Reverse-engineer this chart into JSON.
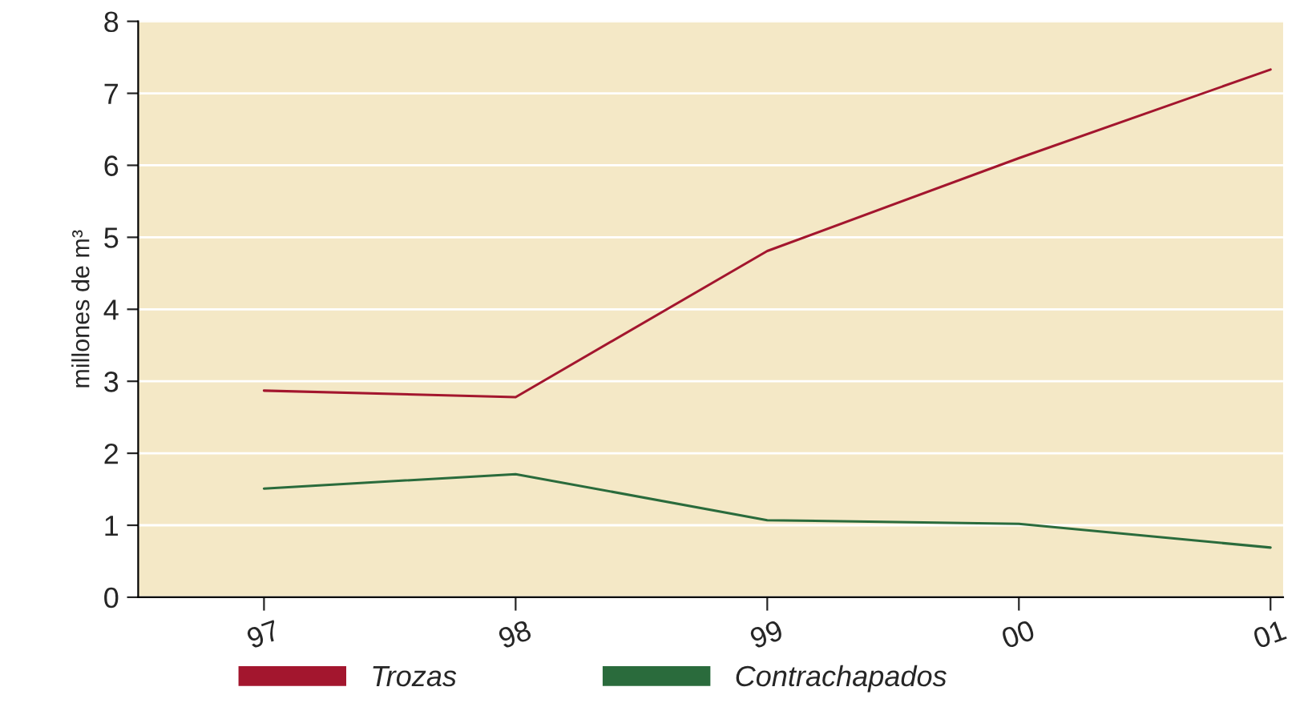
{
  "chart_data": {
    "type": "line",
    "ylabel": "millones de m³",
    "categories": [
      "97",
      "98",
      "99",
      "00",
      "01"
    ],
    "series": [
      {
        "name": "Trozas",
        "color": "#a3162e",
        "values": [
          2.87,
          2.78,
          4.81,
          6.1,
          7.33
        ]
      },
      {
        "name": "Contrachapados",
        "color": "#2a6b3c",
        "values": [
          1.51,
          1.71,
          1.07,
          1.02,
          0.69
        ]
      }
    ],
    "ylim": [
      0,
      8
    ],
    "yticks": [
      0,
      1,
      2,
      3,
      4,
      5,
      6,
      7,
      8
    ],
    "grid": "y",
    "legend": "bottom",
    "marker": "none",
    "line_style": "solid"
  }
}
